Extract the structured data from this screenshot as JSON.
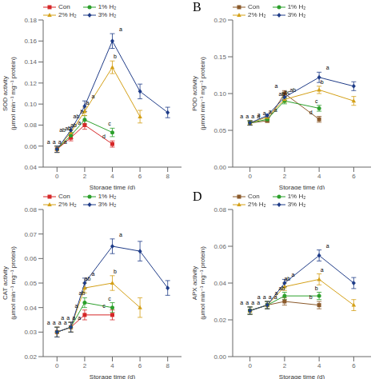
{
  "chart_data": [
    {
      "type": "line",
      "xlabel": "Storage time (d)",
      "ylabel": "SOD activity\n(μmol min⁻¹ mg⁻¹ protein)",
      "x": [
        0,
        1,
        2,
        4,
        6,
        8
      ],
      "xlim": [
        -1,
        9
      ],
      "xticks": [
        0,
        2,
        4,
        6,
        8
      ],
      "ylim": [
        0.04,
        0.18
      ],
      "yticks": [
        0.04,
        0.06,
        0.08,
        {
          "value": 0.1,
          "label": "0.10"
        },
        0.12,
        0.14,
        0.16,
        0.18
      ],
      "grid": false,
      "legend": "upper left",
      "series": [
        {
          "name": "Con",
          "color": "#d62728",
          "marker": "square",
          "values": [
            0.057,
            0.068,
            0.08,
            0.062,
            null,
            null
          ],
          "yerr": [
            0.003,
            0.003,
            0.004,
            0.003,
            null,
            null
          ],
          "annotations": [
            "a",
            "ab",
            "ab",
            "d",
            null,
            null
          ]
        },
        {
          "name": "1% H₂",
          "color": "#2ca02c",
          "marker": "circle",
          "values": [
            0.057,
            0.07,
            0.085,
            0.073,
            null,
            null
          ],
          "yerr": [
            0.003,
            0.003,
            0.004,
            0.004,
            null,
            null
          ],
          "annotations": [
            "a",
            "ab",
            "b",
            "c",
            null,
            null
          ]
        },
        {
          "name": "2% H₂",
          "color": "#d4a017",
          "marker": "triangle",
          "values": [
            0.057,
            0.073,
            0.093,
            0.135,
            0.088,
            null
          ],
          "yerr": [
            0.003,
            0.003,
            0.004,
            0.006,
            0.006,
            null
          ],
          "annotations": [
            "a",
            "ab",
            "a",
            "b",
            null,
            null
          ]
        },
        {
          "name": "3% H₂",
          "color": "#1f3c88",
          "marker": "diamond",
          "values": [
            0.057,
            0.075,
            0.098,
            0.16,
            0.112,
            0.092
          ],
          "yerr": [
            0.003,
            0.003,
            0.005,
            0.007,
            0.007,
            0.005
          ],
          "annotations": [
            "a",
            "a",
            "a",
            "a",
            null,
            null
          ]
        }
      ]
    },
    {
      "type": "line",
      "title": "B",
      "xlabel": "Storage time (d)",
      "ylabel": "POD activity\n(μmol min⁻¹ mg⁻¹ protein)",
      "x": [
        0,
        1,
        2,
        4,
        6
      ],
      "xlim": [
        -1,
        7
      ],
      "xticks": [
        0,
        2,
        4,
        6
      ],
      "ylim": [
        0,
        0.2
      ],
      "yticks": [
        {
          "value": 0,
          "label": "0.00"
        },
        0.05,
        {
          "value": 0.1,
          "label": "0.10"
        },
        0.15,
        {
          "value": 0.2,
          "label": "0.20"
        }
      ],
      "grid": false,
      "legend": "upper left",
      "series": [
        {
          "name": "Con",
          "color": "#8B5A2B",
          "marker": "square",
          "values": [
            0.06,
            0.063,
            0.1,
            0.065,
            null
          ],
          "yerr": [
            0.003,
            0.002,
            0.004,
            0.004,
            null
          ],
          "annotations": [
            "a",
            "a",
            "a",
            "d",
            null
          ]
        },
        {
          "name": "1% H₂",
          "color": "#2ca02c",
          "marker": "circle",
          "values": [
            0.06,
            0.065,
            0.09,
            0.08,
            null
          ],
          "yerr": [
            0.003,
            0.002,
            0.004,
            0.004,
            null
          ],
          "annotations": [
            "a",
            "a",
            "ab",
            "c",
            null
          ]
        },
        {
          "name": "2% H₂",
          "color": "#d4a017",
          "marker": "triangle",
          "values": [
            0.06,
            0.068,
            0.092,
            0.105,
            0.09
          ],
          "yerr": [
            0.003,
            0.002,
            0.004,
            0.005,
            0.006
          ],
          "annotations": [
            "a",
            "a",
            "bc",
            "b",
            null
          ]
        },
        {
          "name": "3% H₂",
          "color": "#1f3c88",
          "marker": "diamond",
          "values": [
            0.06,
            0.07,
            0.095,
            0.122,
            0.11
          ],
          "yerr": [
            0.003,
            0.002,
            0.004,
            0.007,
            0.006
          ],
          "annotations": [
            "a",
            "a",
            "ab",
            "a",
            null
          ]
        }
      ]
    },
    {
      "type": "line",
      "xlabel": "Storage time (d)",
      "ylabel": "CAT activity\n(μmol min⁻¹ mg⁻¹ protein)",
      "x": [
        0,
        1,
        2,
        4,
        6,
        8
      ],
      "xlim": [
        -1,
        9
      ],
      "xticks": [
        0,
        2,
        4,
        6,
        8
      ],
      "ylim": [
        0.02,
        0.08
      ],
      "yticks": [
        0.02,
        0.03,
        0.04,
        0.05,
        0.06,
        0.07,
        0.08
      ],
      "grid": false,
      "legend": "upper left",
      "series": [
        {
          "name": "Con",
          "color": "#d62728",
          "marker": "square",
          "values": [
            0.03,
            0.032,
            0.037,
            0.037,
            null,
            null
          ],
          "yerr": [
            0.002,
            0.002,
            0.002,
            0.002,
            null,
            null
          ],
          "annotations": [
            "a",
            "a",
            "a",
            "c",
            null,
            null
          ]
        },
        {
          "name": "1% H₂",
          "color": "#2ca02c",
          "marker": "circle",
          "values": [
            0.03,
            0.032,
            0.042,
            0.04,
            null,
            null
          ],
          "yerr": [
            0.002,
            0.002,
            0.002,
            0.002,
            null,
            null
          ],
          "annotations": [
            "a",
            "a",
            "ab",
            "c",
            null,
            null
          ]
        },
        {
          "name": "2% H₂",
          "color": "#d4a017",
          "marker": "triangle",
          "values": [
            0.03,
            0.032,
            0.048,
            0.05,
            0.04,
            null
          ],
          "yerr": [
            0.002,
            0.002,
            0.002,
            0.003,
            0.004,
            null
          ],
          "annotations": [
            "a",
            "a",
            "ab",
            "b",
            null,
            null
          ]
        },
        {
          "name": "3% H₂",
          "color": "#1f3c88",
          "marker": "diamond",
          "values": [
            0.03,
            0.032,
            0.05,
            0.065,
            0.063,
            0.048
          ],
          "yerr": [
            0.002,
            0.002,
            0.002,
            0.003,
            0.004,
            0.003
          ],
          "annotations": [
            "a",
            "a",
            "a",
            "a",
            null,
            null
          ]
        }
      ]
    },
    {
      "type": "line",
      "title": "D",
      "xlabel": "Storage time (d)",
      "ylabel": "APX activity\n(μmol min⁻¹ mg⁻¹ protein)",
      "x": [
        0,
        1,
        2,
        4,
        6
      ],
      "xlim": [
        -1,
        7
      ],
      "xticks": [
        0,
        2,
        4,
        6
      ],
      "ylim": [
        0,
        0.08
      ],
      "yticks": [
        {
          "value": 0,
          "label": "0.00"
        },
        0.02,
        0.04,
        0.06,
        0.08
      ],
      "grid": false,
      "legend": "upper left",
      "series": [
        {
          "name": "Con",
          "color": "#8B5A2B",
          "marker": "square",
          "values": [
            0.025,
            0.028,
            0.03,
            0.028,
            null
          ],
          "yerr": [
            0.002,
            0.002,
            0.002,
            0.002,
            null
          ],
          "annotations": [
            "a",
            "a",
            "a",
            "b",
            null
          ]
        },
        {
          "name": "1% H₂",
          "color": "#2ca02c",
          "marker": "circle",
          "values": [
            0.025,
            0.028,
            0.033,
            0.033,
            null
          ],
          "yerr": [
            0.002,
            0.002,
            0.002,
            0.002,
            null
          ],
          "annotations": [
            "a",
            "a",
            "ab",
            "b",
            null
          ]
        },
        {
          "name": "2% H₂",
          "color": "#d4a017",
          "marker": "triangle",
          "values": [
            0.025,
            0.028,
            0.038,
            0.042,
            0.028
          ],
          "yerr": [
            0.002,
            0.002,
            0.002,
            0.003,
            0.003
          ],
          "annotations": [
            "a",
            "a",
            "ab",
            "a",
            null
          ]
        },
        {
          "name": "3% H₂",
          "color": "#1f3c88",
          "marker": "diamond",
          "values": [
            0.025,
            0.028,
            0.04,
            0.055,
            0.04
          ],
          "yerr": [
            0.002,
            0.002,
            0.002,
            0.003,
            0.003
          ],
          "annotations": [
            "a",
            "a",
            "a",
            "a",
            null
          ]
        }
      ]
    }
  ]
}
